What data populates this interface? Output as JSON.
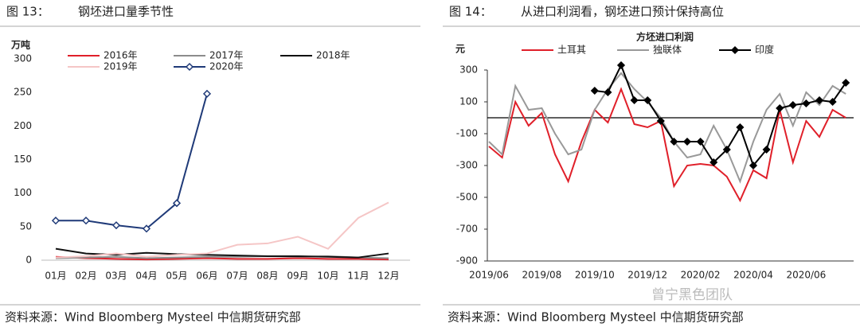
{
  "chart_data": [
    {
      "type": "line",
      "figure_label": "图 13：",
      "title": "钢坯进口量季节性",
      "y_unit": "万吨",
      "categories": [
        "01月",
        "02月",
        "03月",
        "04月",
        "05月",
        "06月",
        "07月",
        "08月",
        "09月",
        "10月",
        "11月",
        "12月"
      ],
      "series": [
        {
          "name": "2016年",
          "color": "#e0202a",
          "values": [
            5,
            3,
            2,
            1,
            2,
            3,
            2,
            2,
            3,
            2,
            2,
            1
          ]
        },
        {
          "name": "2017年",
          "color": "#8c8c8c",
          "values": [
            3,
            4,
            5,
            3,
            4,
            5,
            5,
            6,
            5,
            6,
            4,
            3
          ]
        },
        {
          "name": "2018年",
          "color": "#111111",
          "values": [
            17,
            10,
            8,
            11,
            9,
            8,
            7,
            6,
            6,
            5,
            4,
            10
          ]
        },
        {
          "name": "2019年",
          "color": "#f5c6c6",
          "values": [
            4,
            6,
            10,
            5,
            8,
            10,
            23,
            25,
            35,
            17,
            63,
            86
          ]
        },
        {
          "name": "2020年",
          "color": "#1f3a78",
          "marker": "diamond",
          "values": [
            59,
            59,
            52,
            47,
            85,
            248,
            null,
            null,
            null,
            null,
            null,
            null
          ]
        }
      ],
      "ylim": [
        0,
        300
      ],
      "yticks": [
        0,
        50,
        100,
        150,
        200,
        250,
        300
      ],
      "source": "资料来源：Wind Bloomberg Mysteel 中信期货研究部"
    },
    {
      "type": "line",
      "figure_label": "图 14：",
      "title": "从进口利润看，钢坯进口预计保持高位",
      "chart_title": "方坯进口利润",
      "y_unit": "元",
      "categories": [
        "2019/06",
        null,
        null,
        null,
        "2019/08",
        null,
        null,
        null,
        "2019/10",
        null,
        null,
        null,
        "2019/12",
        null,
        null,
        null,
        "2020/02",
        null,
        null,
        null,
        "2020/04",
        null,
        null,
        null,
        "2020/06",
        null,
        null,
        null
      ],
      "series": [
        {
          "name": "土耳其",
          "color": "#e0202a",
          "values": [
            -180,
            -250,
            100,
            -50,
            30,
            -230,
            -400,
            -150,
            50,
            -30,
            180,
            -40,
            -60,
            -20,
            -430,
            -300,
            -290,
            -300,
            -370,
            -520,
            -330,
            -380,
            50,
            -280,
            -20,
            -120,
            50,
            0
          ]
        },
        {
          "name": "独联体",
          "color": "#999999",
          "values": [
            -150,
            -230,
            200,
            50,
            60,
            -100,
            -230,
            -200,
            50,
            180,
            280,
            180,
            100,
            0,
            -150,
            -250,
            -230,
            -50,
            -200,
            -400,
            -150,
            50,
            150,
            -50,
            160,
            80,
            200,
            150
          ]
        },
        {
          "name": "印度",
          "color": "#000000",
          "marker": "diamond",
          "values": [
            null,
            null,
            null,
            null,
            null,
            null,
            null,
            null,
            170,
            160,
            330,
            110,
            110,
            -20,
            -150,
            -150,
            -150,
            -280,
            -200,
            -60,
            -300,
            -200,
            60,
            80,
            90,
            110,
            100,
            220
          ]
        }
      ],
      "ylim": [
        -900,
        300
      ],
      "yticks": [
        -900,
        -700,
        -500,
        -300,
        -100,
        100,
        300
      ],
      "hline": 0,
      "source": "资料来源：Wind Bloomberg Mysteel 中信期货研究部"
    }
  ],
  "watermark": "曾宁黑色团队"
}
